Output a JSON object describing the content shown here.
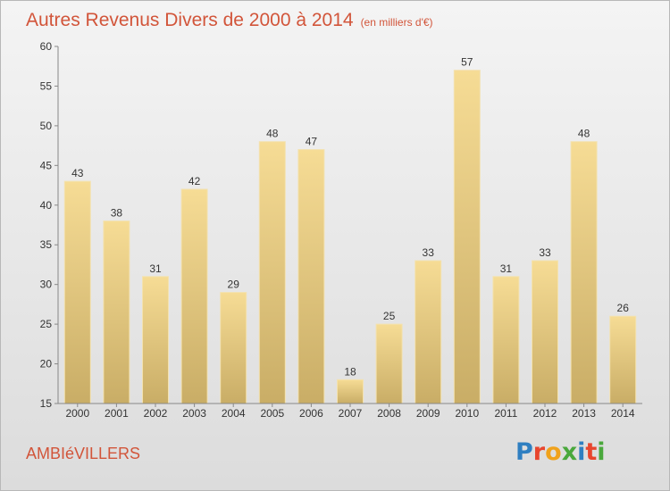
{
  "header": {
    "title": "Autres Revenus Divers de 2000 à 2014",
    "subtitle": "(en milliers d'€)"
  },
  "footer": {
    "town": "AMBIéVILLERS",
    "logo_letters": [
      "P",
      "r",
      "o",
      "x",
      "i",
      "t",
      "i"
    ],
    "logo_colors": [
      "#2f7fc1",
      "#e8462e",
      "#f0a21c",
      "#4aa83c",
      "#2f7fc1",
      "#e8462e",
      "#4aa83c"
    ]
  },
  "colors": {
    "bar_top": "#f6dc95",
    "bar_bottom": "#c9ad66",
    "text": "#333333",
    "title": "#d2553a"
  },
  "chart_data": {
    "type": "bar",
    "categories": [
      "2000",
      "2001",
      "2002",
      "2003",
      "2004",
      "2005",
      "2006",
      "2007",
      "2008",
      "2009",
      "2010",
      "2011",
      "2012",
      "2013",
      "2014"
    ],
    "values": [
      43,
      38,
      31,
      42,
      29,
      48,
      47,
      18,
      25,
      33,
      57,
      31,
      33,
      48,
      26
    ],
    "ylim": [
      15,
      60
    ],
    "yticks": [
      15,
      20,
      25,
      30,
      35,
      40,
      45,
      50,
      55,
      60
    ],
    "grid": false,
    "legend": "none"
  }
}
